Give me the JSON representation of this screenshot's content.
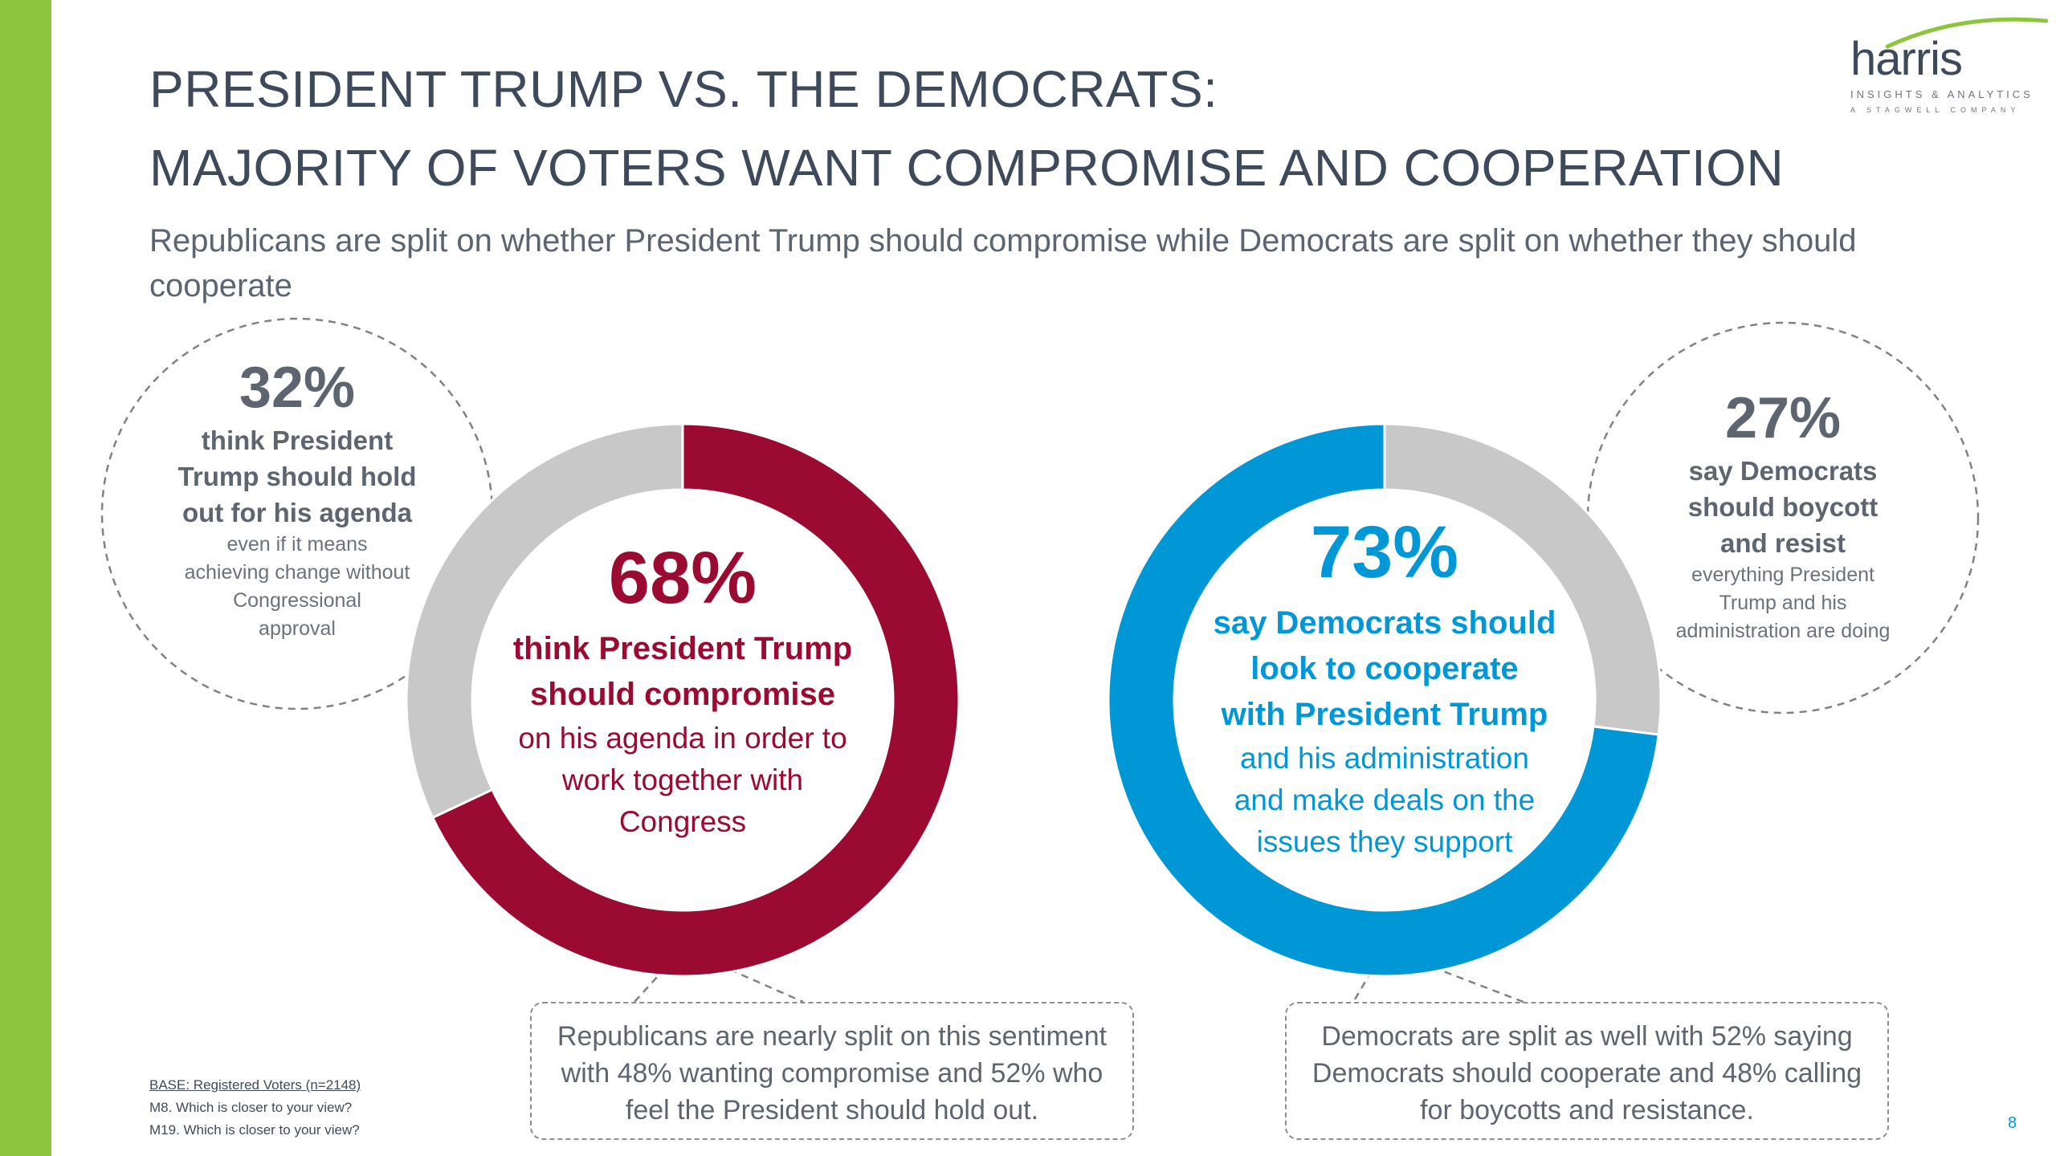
{
  "title": {
    "line1": "PRESIDENT TRUMP VS. THE DEMOCRATS:",
    "line2": "MAJORITY OF VOTERS WANT COMPROMISE AND COOPERATION"
  },
  "subtitle": "Republicans are split on whether President Trump should compromise while Democrats are split on whether they should cooperate",
  "logo": {
    "name": "harris",
    "tagline": "INSIGHTS & ANALYTICS",
    "company": "A STAGWELL COMPANY"
  },
  "colors": {
    "accent_bar": "#8cc63f",
    "republican_red": "#9b0a30",
    "democrat_blue": "#0097d7",
    "remainder_gray": "#c8c8c8"
  },
  "chart_data": [
    {
      "type": "pie",
      "style": "donut",
      "segments": [
        {
          "label": "think President Trump should compromise",
          "value": 68,
          "color": "#9b0a30"
        },
        {
          "label": "think President Trump should hold out for his agenda",
          "value": 32,
          "color": "#c8c8c8"
        }
      ]
    },
    {
      "type": "pie",
      "style": "donut",
      "segments": [
        {
          "label": "say Democrats should look to cooperate with President Trump",
          "value": 73,
          "color": "#0097d7"
        },
        {
          "label": "say Democrats should boycott and resist",
          "value": 27,
          "color": "#c8c8c8"
        }
      ]
    }
  ],
  "callouts": {
    "left_side": {
      "pct": "32%",
      "bold": [
        "think President",
        "Trump should hold",
        "out for his agenda"
      ],
      "rest": [
        "even if it means",
        "achieving change without",
        "Congressional",
        "approval"
      ]
    },
    "left_center": {
      "pct": "68%",
      "bold": [
        "think President Trump",
        "should compromise"
      ],
      "rest": [
        "on his agenda in order to",
        "work together with",
        "Congress"
      ]
    },
    "right_center": {
      "pct": "73%",
      "bold": [
        "say Democrats should",
        "look to cooperate",
        "with President Trump"
      ],
      "rest": [
        "and his administration",
        "and make deals on the",
        "issues they support"
      ]
    },
    "right_side": {
      "pct": "27%",
      "bold": [
        "say Democrats",
        "should boycott",
        "and resist"
      ],
      "rest": [
        "everything President",
        "Trump and his",
        "administration are doing"
      ]
    }
  },
  "notes": {
    "left": [
      "Republicans are nearly split on this sentiment",
      "with 48% wanting compromise and 52% who",
      "feel the President should hold out."
    ],
    "right": [
      "Democrats are split as well with 52% saying",
      "Democrats should cooperate and 48% calling",
      "for boycotts and resistance."
    ]
  },
  "footer": {
    "base": "BASE: Registered Voters (n=2148)",
    "q1": "M8. Which is closer to your view?",
    "q2": "M19. Which is closer to your view?",
    "page": "8"
  }
}
